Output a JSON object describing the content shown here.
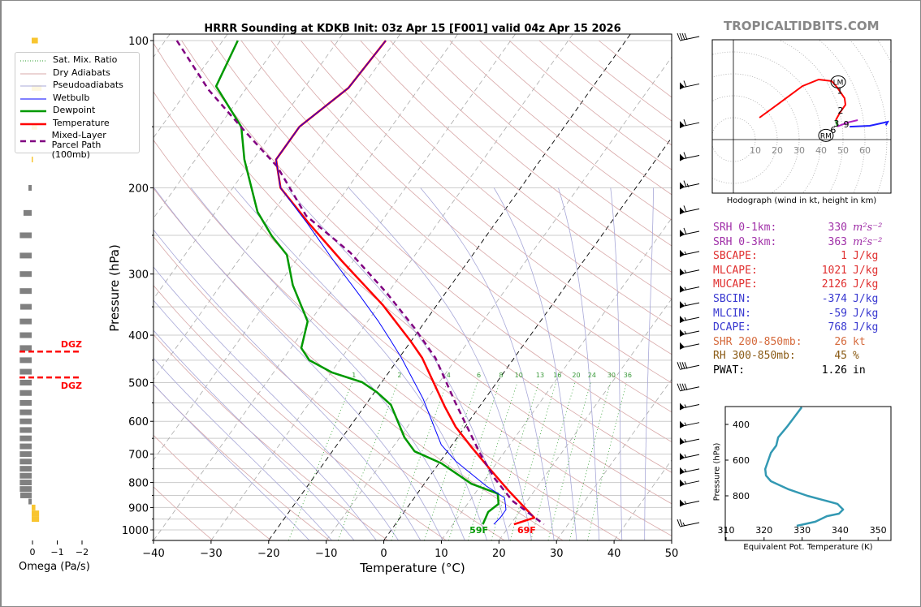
{
  "watermark": "TROPICALTIDBITS.COM",
  "legend": [
    {
      "label": "Sat. Mix. Ratio",
      "color": "#2e9e2e",
      "style": "dotted"
    },
    {
      "label": "Dry Adiabats",
      "color": "#d8a8a8",
      "style": "thin"
    },
    {
      "label": "Pseudoadiabats",
      "color": "#a8a8d8",
      "style": "thin"
    },
    {
      "label": "Wetbulb",
      "color": "#0000ff",
      "style": "solid"
    },
    {
      "label": "Dewpoint",
      "color": "#009900",
      "style": "thick"
    },
    {
      "label": "Temperature",
      "color": "#ff0000",
      "style": "thick"
    },
    {
      "label": "Mixed-Layer\nParcel Path (100mb)",
      "color": "#800080",
      "style": "dashed"
    }
  ],
  "stats": [
    {
      "label": "SRH 0-1km:",
      "value": "330",
      "unit": "m²s⁻²",
      "color": "#a030a8"
    },
    {
      "label": "SRH 0-3km:",
      "value": "363",
      "unit": "m²s⁻²",
      "color": "#a030a8"
    },
    {
      "label": "SBCAPE:",
      "value": "1",
      "unit": "J/kg",
      "color": "#e03030"
    },
    {
      "label": "MLCAPE:",
      "value": "1021",
      "unit": "J/kg",
      "color": "#e03030"
    },
    {
      "label": "MUCAPE:",
      "value": "2126",
      "unit": "J/kg",
      "color": "#e03030"
    },
    {
      "label": "SBCIN:",
      "value": "-374",
      "unit": "J/kg",
      "color": "#3838d0"
    },
    {
      "label": "MLCIN:",
      "value": "-59",
      "unit": "J/kg",
      "color": "#3838d0"
    },
    {
      "label": "DCAPE:",
      "value": "768",
      "unit": "J/kg",
      "color": "#3838d0"
    },
    {
      "label": "SHR 200-850mb:",
      "value": "26",
      "unit": "kt",
      "color": "#d56a3c"
    },
    {
      "label": "RH 300-850mb:",
      "value": "45",
      "unit": "%",
      "color": "#8a5a14"
    },
    {
      "label": "PWAT:",
      "value": "1.26",
      "unit": "in",
      "color": "#000000"
    }
  ],
  "chart_data": [
    {
      "id": "skewt",
      "type": "line",
      "title": "HRRR Sounding at KDKB Init: 03z Apr 15 [F001] valid 04z Apr 15 2026",
      "xlabel": "Temperature (°C)",
      "ylabel": "Pressure (hPa)",
      "xlim": [
        -40,
        50
      ],
      "ylim": [
        1050,
        97
      ],
      "yscale": "log",
      "skewed": true,
      "grid": true,
      "xticks": [
        "−40",
        "−30",
        "−20",
        "−10",
        "0",
        "10",
        "20",
        "30",
        "40",
        "50"
      ],
      "xtick_values": [
        -40,
        -30,
        -20,
        -10,
        0,
        10,
        20,
        30,
        40,
        50
      ],
      "yticks": [
        "100",
        "200",
        "300",
        "400",
        "500",
        "600",
        "700",
        "800",
        "900",
        "1000"
      ],
      "ytick_values": [
        100,
        200,
        300,
        400,
        500,
        600,
        700,
        800,
        900,
        1000
      ],
      "legend_placement": "top-left",
      "series": [
        {
          "name": "Temperature",
          "color": "#ff0000",
          "width": 2.5,
          "dash": "",
          "p": [
            100,
            125,
            150,
            175,
            200,
            237,
            282,
            347,
            412,
            445,
            560,
            616,
            678,
            754,
            830,
            944,
            974
          ],
          "T": [
            -61.7,
            -62.3,
            -66,
            -66,
            -61.7,
            -52.2,
            -42,
            -29.4,
            -20,
            -16,
            -6,
            -1.6,
            3.7,
            9.8,
            15.4,
            23.3,
            20.6
          ]
        },
        {
          "name": "Dewpoint",
          "color": "#009900",
          "width": 2.5,
          "dash": "",
          "p": [
            100,
            124,
            150,
            175,
            224,
            251,
            274,
            316,
            375,
            425,
            450,
            477,
            499,
            523,
            555,
            647,
            691,
            731,
            805,
            843,
            885,
            919,
            974
          ],
          "T": [
            -87.4,
            -85.5,
            -76.1,
            -71.5,
            -62.7,
            -57.2,
            -52.3,
            -47.5,
            -40.4,
            -38.2,
            -35.3,
            -29.8,
            -23.4,
            -19.6,
            -15.6,
            -9.2,
            -5.7,
            0.4,
            8.2,
            14,
            15.4,
            14.6,
            15.2
          ]
        },
        {
          "name": "Wetbulb",
          "color": "#0000ff",
          "width": 1,
          "dash": "",
          "p": [
            100,
            125,
            150,
            175,
            200,
            237,
            282,
            328,
            375,
            407,
            445,
            539,
            670,
            723,
            814,
            860,
            909,
            941,
            974
          ],
          "T": [
            -61.7,
            -62.3,
            -66,
            -66,
            -61.7,
            -52.5,
            -43.4,
            -35.2,
            -28.1,
            -24,
            -19.6,
            -10.8,
            -1.9,
            2.6,
            11.1,
            15.7,
            17.4,
            17.4,
            17.1
          ]
        },
        {
          "name": "Mixed-Layer Parcel Path (100mb)",
          "color": "#800080",
          "width": 2.5,
          "dash": "7,5",
          "p": [
            100,
            126,
            153,
            181,
            228,
            271,
            328,
            387,
            445,
            549,
            696,
            784,
            872,
            974
          ],
          "T": [
            -98,
            -86.4,
            -75,
            -64.9,
            -53.8,
            -41.6,
            -30.2,
            -21,
            -13.7,
            -4.7,
            5.8,
            11.5,
            17.4,
            25.8
          ]
        }
      ],
      "surface_labels": [
        {
          "text": "59F",
          "p": 1000,
          "T": 15.2,
          "color": "#009900"
        },
        {
          "text": "69F",
          "p": 1000,
          "T": 23.5,
          "color": "#ff0000"
        }
      ],
      "mixing_ratio_labels": [
        "1",
        "2",
        "4",
        "6",
        "8",
        "10",
        "13",
        "16",
        "20",
        "24",
        "30",
        "36"
      ],
      "mixing_ratio_values": [
        1,
        2,
        4,
        6,
        8,
        10,
        13,
        16,
        20,
        24,
        30,
        36
      ],
      "wind_barbs": [
        {
          "p": 100,
          "speed_kt": 40
        },
        {
          "p": 125,
          "speed_kt": 60
        },
        {
          "p": 150,
          "speed_kt": 60
        },
        {
          "p": 175,
          "speed_kt": 60
        },
        {
          "p": 200,
          "speed_kt": 65
        },
        {
          "p": 225,
          "speed_kt": 60
        },
        {
          "p": 250,
          "speed_kt": 60
        },
        {
          "p": 275,
          "speed_kt": 55
        },
        {
          "p": 300,
          "speed_kt": 55
        },
        {
          "p": 325,
          "speed_kt": 55
        },
        {
          "p": 350,
          "speed_kt": 55
        },
        {
          "p": 375,
          "speed_kt": 55
        },
        {
          "p": 400,
          "speed_kt": 55
        },
        {
          "p": 425,
          "speed_kt": 50
        },
        {
          "p": 470,
          "speed_kt": 40
        },
        {
          "p": 520,
          "speed_kt": 40
        },
        {
          "p": 565,
          "speed_kt": 55
        },
        {
          "p": 615,
          "speed_kt": 55
        },
        {
          "p": 665,
          "speed_kt": 55
        },
        {
          "p": 715,
          "speed_kt": 55
        },
        {
          "p": 765,
          "speed_kt": 55
        },
        {
          "p": 810,
          "speed_kt": 55
        },
        {
          "p": 890,
          "speed_kt": 55
        },
        {
          "p": 985,
          "speed_kt": 25
        }
      ]
    },
    {
      "id": "omega",
      "type": "bar",
      "xlabel": "Omega (Pa/s)",
      "xticks": [
        "0",
        "−1",
        "−2"
      ],
      "xtick_values": [
        0,
        -1,
        -2
      ],
      "xlim": [
        0.95,
        -2.0
      ],
      "p": [
        100,
        125,
        150,
        175,
        200,
        225,
        250,
        275,
        300,
        325,
        350,
        375,
        400,
        425,
        450,
        475,
        500,
        525,
        550,
        575,
        600,
        625,
        650,
        675,
        700,
        725,
        750,
        775,
        800,
        825,
        850,
        875,
        900,
        925,
        950
      ],
      "omega": [
        -0.25,
        -0.4,
        -0.22,
        -0.03,
        0.13,
        0.33,
        0.48,
        0.48,
        0.48,
        0.48,
        0.46,
        0.48,
        0.48,
        0.48,
        0.48,
        0.48,
        0.48,
        0.48,
        0.48,
        0.48,
        0.48,
        0.48,
        0.48,
        0.48,
        0.48,
        0.48,
        0.48,
        0.48,
        0.48,
        0.48,
        0.46,
        0.13,
        -0.15,
        -0.3,
        -0.3
      ],
      "positive_color": "#808080",
      "negative_color": "#f8c530",
      "dgz": {
        "label": "DGZ",
        "pressures": [
          432,
          488
        ],
        "color": "#ff0000"
      }
    },
    {
      "id": "hodograph",
      "type": "line",
      "xlabel": "Hodograph (wind in kt, height in km)",
      "ring_labels": [
        "10",
        "20",
        "30",
        "40",
        "50",
        "60"
      ],
      "ring_values": [
        10,
        20,
        30,
        40,
        50,
        60,
        70,
        80,
        90
      ],
      "segments": [
        {
          "name": "0-3 km",
          "color": "#ff0000",
          "u": [
            11.9,
            21.5,
            31.5,
            38.9,
            44.8,
            47.4,
            50.7,
            51.1,
            48.5,
            46.7
          ],
          "v": [
            10,
            17,
            24.4,
            27.4,
            26.7,
            23.7,
            18.9,
            15.9,
            12.2,
            8.9
          ]
        },
        {
          "name": "3-6 km",
          "color": "#2ca02c",
          "u": [
            46.7,
            47.4
          ],
          "v": [
            8.9,
            6.0
          ]
        },
        {
          "name": "6-9 km",
          "color": "#b020c0",
          "u": [
            47.4,
            52.2,
            56.7
          ],
          "v": [
            6.0,
            7.8,
            8.9
          ]
        },
        {
          "name": "9+ km",
          "color": "#2020ff",
          "u": [
            53,
            62.2,
            70.4,
            69.5
          ],
          "v": [
            5.9,
            6.3,
            8.1,
            6.5
          ]
        }
      ],
      "height_labels": [
        {
          "text": "1",
          "u": 48.5,
          "v": 22.5
        },
        {
          "text": "2",
          "u": 48.9,
          "v": 13.4
        },
        {
          "text": "3",
          "u": 47,
          "v": 7.4
        },
        {
          "text": "6",
          "u": 45.5,
          "v": 4.4
        },
        {
          "text": "9",
          "u": 51.5,
          "v": 7
        }
      ],
      "storm_motion": [
        {
          "text": "LM",
          "u": 47.8,
          "v": 26.3
        },
        {
          "text": "RM",
          "u": 42.2,
          "v": 1.9
        }
      ]
    },
    {
      "id": "theta_e",
      "type": "line",
      "xlabel": "Equivalent Pot. Temperature (K)",
      "ylabel": "Pressure (hPa)",
      "xlim": [
        310,
        353.5
      ],
      "ylim": [
        1050,
        300
      ],
      "xticks": [
        "310",
        "320",
        "330",
        "340",
        "350"
      ],
      "xtick_values": [
        310,
        320,
        330,
        340,
        350
      ],
      "yticks": [
        "400",
        "600",
        "800"
      ],
      "ytick_values": [
        400,
        600,
        800
      ],
      "color": "#3399b3",
      "theta_e": [
        329.9,
        326,
        323.7,
        323.2,
        321.8,
        320.3,
        320.5,
        321.8,
        326.5,
        331.4,
        339.3,
        340.8,
        339.7,
        336.5,
        333.5,
        328.6
      ],
      "p": [
        304,
        414,
        473,
        518,
        559,
        650,
        686,
        718,
        764,
        800,
        845,
        877,
        900,
        914,
        945,
        968
      ]
    }
  ]
}
